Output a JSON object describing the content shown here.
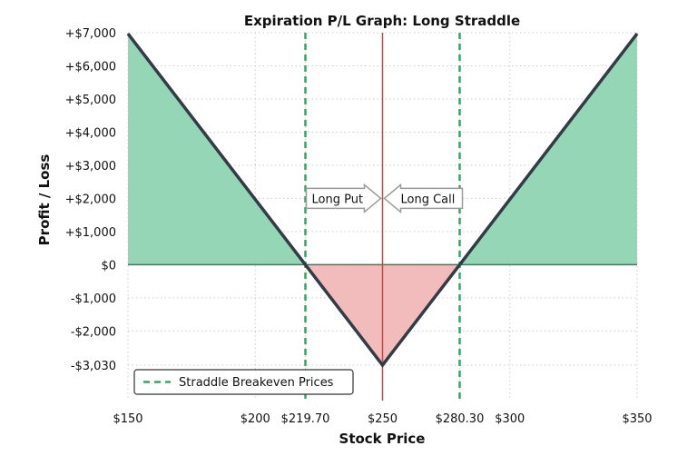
{
  "chart_data": {
    "type": "line",
    "title": "Expiration P/L Graph: Long Straddle",
    "xlabel": "Stock Price",
    "ylabel": "Profit / Loss",
    "xlim": [
      150,
      350
    ],
    "ylim": [
      -4100,
      7000
    ],
    "x_ticks": [
      {
        "value": 150,
        "label": "$150"
      },
      {
        "value": 200,
        "label": "$200"
      },
      {
        "value": 219.7,
        "label": "$219.70"
      },
      {
        "value": 250,
        "label": "$250"
      },
      {
        "value": 280.3,
        "label": "$280.30"
      },
      {
        "value": 300,
        "label": "$300"
      },
      {
        "value": 350,
        "label": "$350"
      }
    ],
    "y_ticks": [
      {
        "value": 7000,
        "label": "+$7,000"
      },
      {
        "value": 6000,
        "label": "+$6,000"
      },
      {
        "value": 5000,
        "label": "+$5,000"
      },
      {
        "value": 4000,
        "label": "+$4,000"
      },
      {
        "value": 3000,
        "label": "+$3,000"
      },
      {
        "value": 2000,
        "label": "+$2,000"
      },
      {
        "value": 1000,
        "label": "+$1,000"
      },
      {
        "value": 0,
        "label": "$0"
      },
      {
        "value": -1000,
        "label": "-$1,000"
      },
      {
        "value": -2000,
        "label": "-$2,000"
      },
      {
        "value": -3030,
        "label": "-$3,030"
      }
    ],
    "series": [
      {
        "x": [
          150,
          219.7,
          250,
          280.3,
          350
        ],
        "y": [
          6970,
          0,
          -3030,
          0,
          6970
        ]
      }
    ],
    "breakeven_prices": [
      219.7,
      280.3
    ],
    "strike_price": 250,
    "annotations": [
      {
        "text": "Long Put",
        "x": 250,
        "y": 2000,
        "direction": "right"
      },
      {
        "text": "Long Call",
        "x": 250,
        "y": 2000,
        "direction": "left"
      }
    ],
    "legend": {
      "entries": [
        "Straddle Breakeven Prices"
      ],
      "placement": "lower-left"
    },
    "grid": true,
    "colors": {
      "payoff_line": "#333b46",
      "profit_fill": "#8fd4b3",
      "loss_fill": "#f2b8b8",
      "breakeven_line": "#27ae60",
      "strike_line": "#e03c31",
      "zero_line": "#3a7d5e"
    }
  }
}
